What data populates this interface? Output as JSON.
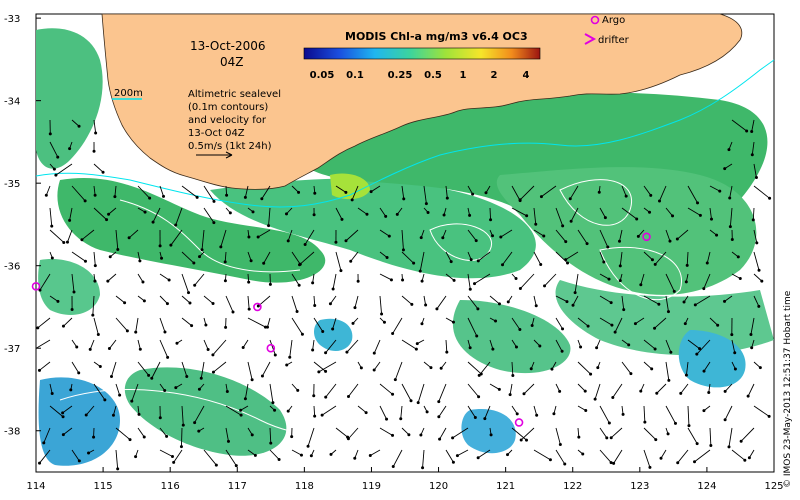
{
  "map": {
    "date_label": "13-Oct-2006",
    "time_label": "04Z",
    "colorbar_title": "MODIS Chl-a mg/m3 v6.4 OC3",
    "colorbar_ticks": [
      "0.05",
      "0.1",
      "0.25",
      "0.5",
      "1",
      "2",
      "4"
    ],
    "isobath_label": "200m",
    "sealevel_note": [
      "Altimetric sealevel",
      "(0.1m contours)",
      "and velocity for",
      "13-Oct 04Z",
      "0.5m/s (1kt 24h)"
    ],
    "legend_argo": "Argo",
    "legend_drifter": "drifter",
    "x_ticks": [
      "114",
      "115",
      "116",
      "117",
      "118",
      "119",
      "120",
      "121",
      "122",
      "123",
      "124",
      "125"
    ],
    "y_ticks": [
      "-33",
      "-34",
      "-35",
      "-36",
      "-37",
      "-38"
    ],
    "credit": "© IMOS 23-May-2013 12:51:37 Hobart time",
    "colors": {
      "land": "#fbc58f",
      "chl_high": "#3fb86a",
      "chl_mid": "#49c27f",
      "chl_low": "#2fa7d8",
      "argo": "#e000e0",
      "isobath": "#00e5ee"
    },
    "argo_floats": [
      {
        "lon": 117.3,
        "lat": -36.5
      },
      {
        "lon": 117.5,
        "lat": -37.0
      },
      {
        "lon": 114.0,
        "lat": -36.25
      },
      {
        "lon": 123.1,
        "lat": -35.65
      },
      {
        "lon": 121.2,
        "lat": -37.9
      }
    ]
  }
}
